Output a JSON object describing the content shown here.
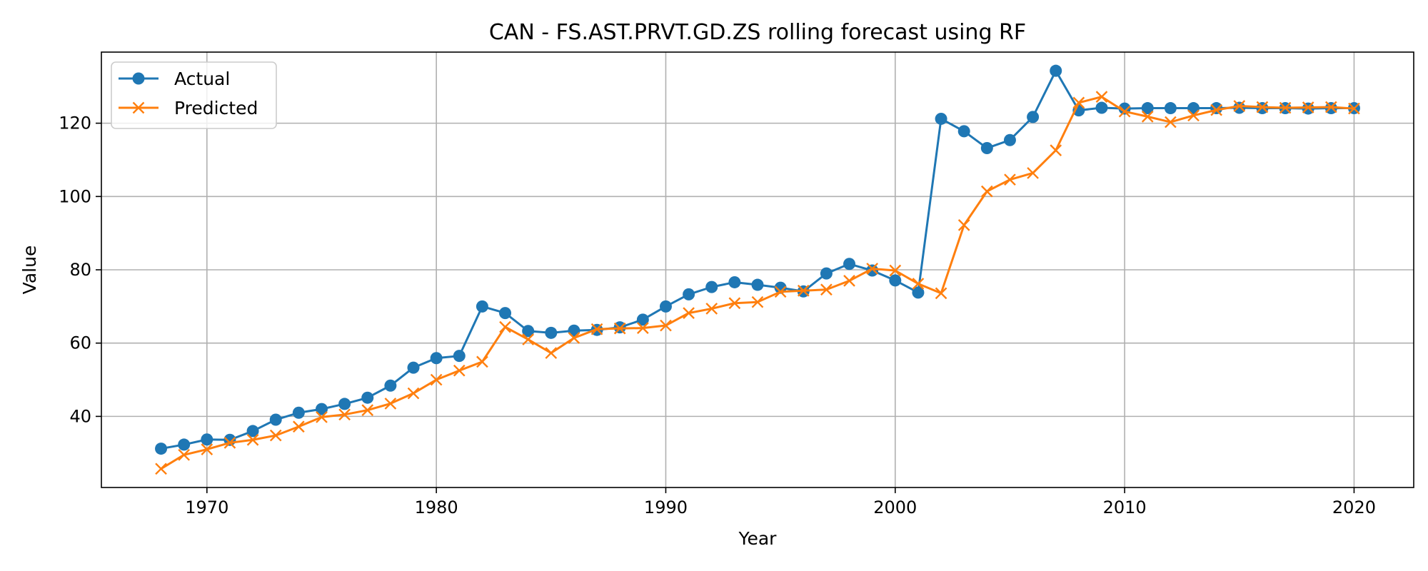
{
  "chart_data": {
    "type": "line",
    "title": "CAN - FS.AST.PRVT.GD.ZS rolling forecast using RF",
    "xlabel": "Year",
    "ylabel": "Value",
    "xlim": [
      1965.4,
      1922.6
    ],
    "ylim": [
      20.6,
      139.4
    ],
    "x_ticks": [
      1970,
      1980,
      1990,
      2000,
      2010,
      2020
    ],
    "y_ticks": [
      40,
      60,
      80,
      100,
      120
    ],
    "grid": true,
    "legend_position": "top-left",
    "x": [
      1968,
      1969,
      1970,
      1971,
      1972,
      1973,
      1974,
      1975,
      1976,
      1977,
      1978,
      1979,
      1980,
      1981,
      1982,
      1983,
      1984,
      1985,
      1986,
      1987,
      1988,
      1989,
      1990,
      1991,
      1992,
      1993,
      1994,
      1995,
      1996,
      1997,
      1998,
      1999,
      2000,
      2001,
      2002,
      2003,
      2004,
      2005,
      2006,
      2007,
      2008,
      2009,
      2010,
      2011,
      2012,
      2013,
      2014,
      2015,
      2016,
      2017,
      2018,
      2019,
      2020
    ],
    "series": [
      {
        "name": "Actual",
        "color": "#1f77b4",
        "marker": "circle",
        "values": [
          31.2,
          32.3,
          33.7,
          33.6,
          36.0,
          39.1,
          41.0,
          42.0,
          43.4,
          45.1,
          48.4,
          53.3,
          55.9,
          56.5,
          70.0,
          68.2,
          63.3,
          62.8,
          63.4,
          63.6,
          64.3,
          66.4,
          70.0,
          73.3,
          75.3,
          76.6,
          75.9,
          75.1,
          74.1,
          79.0,
          81.6,
          79.8,
          77.1,
          73.8,
          121.2,
          117.8,
          113.2,
          115.4,
          121.7,
          134.3,
          123.5,
          124.2,
          124.0,
          124.1,
          124.1,
          124.1,
          124.1,
          124.2,
          124.1,
          124.1,
          124.0,
          124.1,
          124.1
        ]
      },
      {
        "name": "Predicted",
        "color": "#ff7f0e",
        "marker": "x",
        "values": [
          25.7,
          29.5,
          31.0,
          32.8,
          33.6,
          34.8,
          37.2,
          39.8,
          40.5,
          41.7,
          43.5,
          46.3,
          50.0,
          52.5,
          54.9,
          64.4,
          61.0,
          57.3,
          61.4,
          63.8,
          64.0,
          64.1,
          64.8,
          68.2,
          69.4,
          70.9,
          71.2,
          74.0,
          74.3,
          74.6,
          77.0,
          80.3,
          79.8,
          76.2,
          73.6,
          92.2,
          101.4,
          104.6,
          106.4,
          112.6,
          125.6,
          127.2,
          123.2,
          121.8,
          120.3,
          122.1,
          123.6,
          124.7,
          124.4,
          124.2,
          124.3,
          124.4,
          124.0
        ]
      }
    ]
  }
}
